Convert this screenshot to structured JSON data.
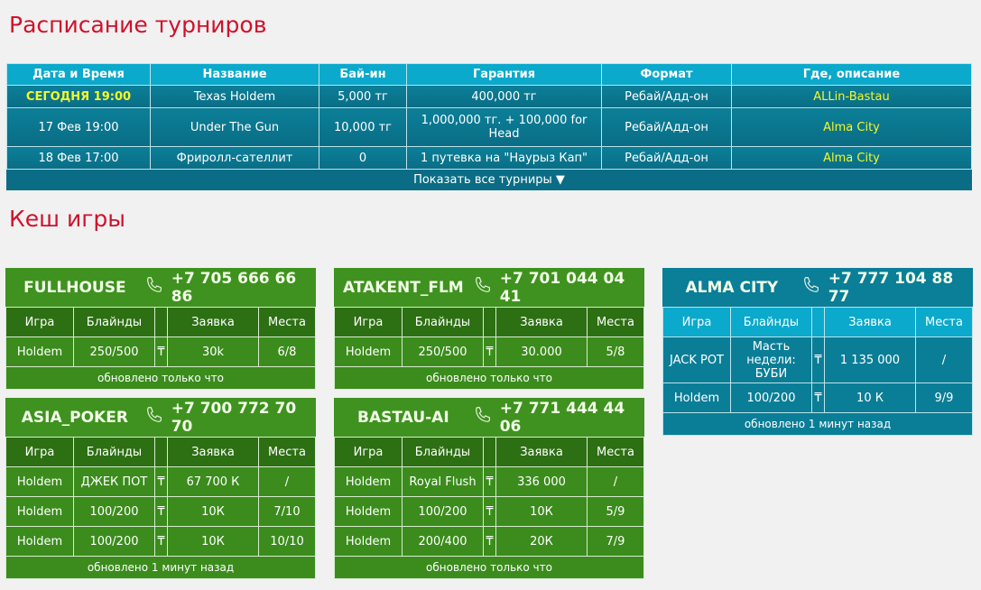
{
  "schedule": {
    "title": "Расписание турниров",
    "headers": [
      "Дата и Время",
      "Название",
      "Бай-ин",
      "Гарантия",
      "Формат",
      "Где, описание"
    ],
    "rows": [
      [
        "СЕГОДНЯ 19:00",
        "Texas Holdem",
        "5,000 тг",
        "400,000 тг",
        "Ребай/Адд-он",
        "ALLin-Bastau"
      ],
      [
        "17 Фев 19:00",
        "Under The Gun",
        "10,000 тг",
        "1,000,000 тг. + 100,000 for Head",
        "Ребай/Адд-он",
        "Alma City"
      ],
      [
        "18 Фев 17:00",
        "Фриролл-сателлит",
        "0",
        "1 путевка на \"Наурыз Кап\"",
        "Ребай/Адд-он",
        "Alma City"
      ]
    ],
    "show_all": "Показать все турниры ▼"
  },
  "cash": {
    "title": "Кеш игры",
    "columns": [
      "Игра",
      "Блайнды",
      "",
      "Заявка",
      "Места"
    ],
    "currency": "₸",
    "colors": {
      "green": "#3f921f",
      "blue": "#0b7e98",
      "accent_title": "#d0112b",
      "highlight": "#f4f72b"
    },
    "clubs": [
      {
        "name": "FULLHOUSE",
        "phone": "+7 705 666 66 86",
        "theme": "green",
        "rows": [
          [
            "Holdem",
            "250/500",
            "30k",
            "6/8"
          ]
        ],
        "updated": "обновлено только что"
      },
      {
        "name": "ATAKENT_FLM",
        "phone": "+7 701 044 04 41",
        "theme": "green",
        "rows": [
          [
            "Holdem",
            "250/500",
            "30.000",
            "5/8"
          ]
        ],
        "updated": "обновлено только что"
      },
      {
        "name": "ALMA CITY",
        "phone": "+7 777 104 88 77",
        "theme": "blue",
        "rows": [
          [
            "JACK POT",
            "Масть недели: БУБИ",
            "1 135 000",
            "/"
          ],
          [
            "Holdem",
            "100/200",
            "10 К",
            "9/9"
          ]
        ],
        "updated": "обновлено 1 минут назад"
      },
      {
        "name": "ASIA_POKER",
        "phone": "+7 700 772 70 70",
        "theme": "green",
        "rows": [
          [
            "Holdem",
            "ДЖЕК ПОТ",
            "67 700 К",
            "/"
          ],
          [
            "Holdem",
            "100/200",
            "10К",
            "7/10"
          ],
          [
            "Holdem",
            "100/200",
            "10К",
            "10/10"
          ]
        ],
        "updated": "обновлено 1 минут назад"
      },
      {
        "name": "BASTAU-AI",
        "phone": "+7 771 444 44 06",
        "theme": "green",
        "rows": [
          [
            "Holdem",
            "Royal Flush",
            "336 000",
            "/"
          ],
          [
            "Holdem",
            "100/200",
            "10К",
            "5/9"
          ],
          [
            "Holdem",
            "200/400",
            "20К",
            "7/9"
          ]
        ],
        "updated": "обновлено только что"
      }
    ]
  }
}
